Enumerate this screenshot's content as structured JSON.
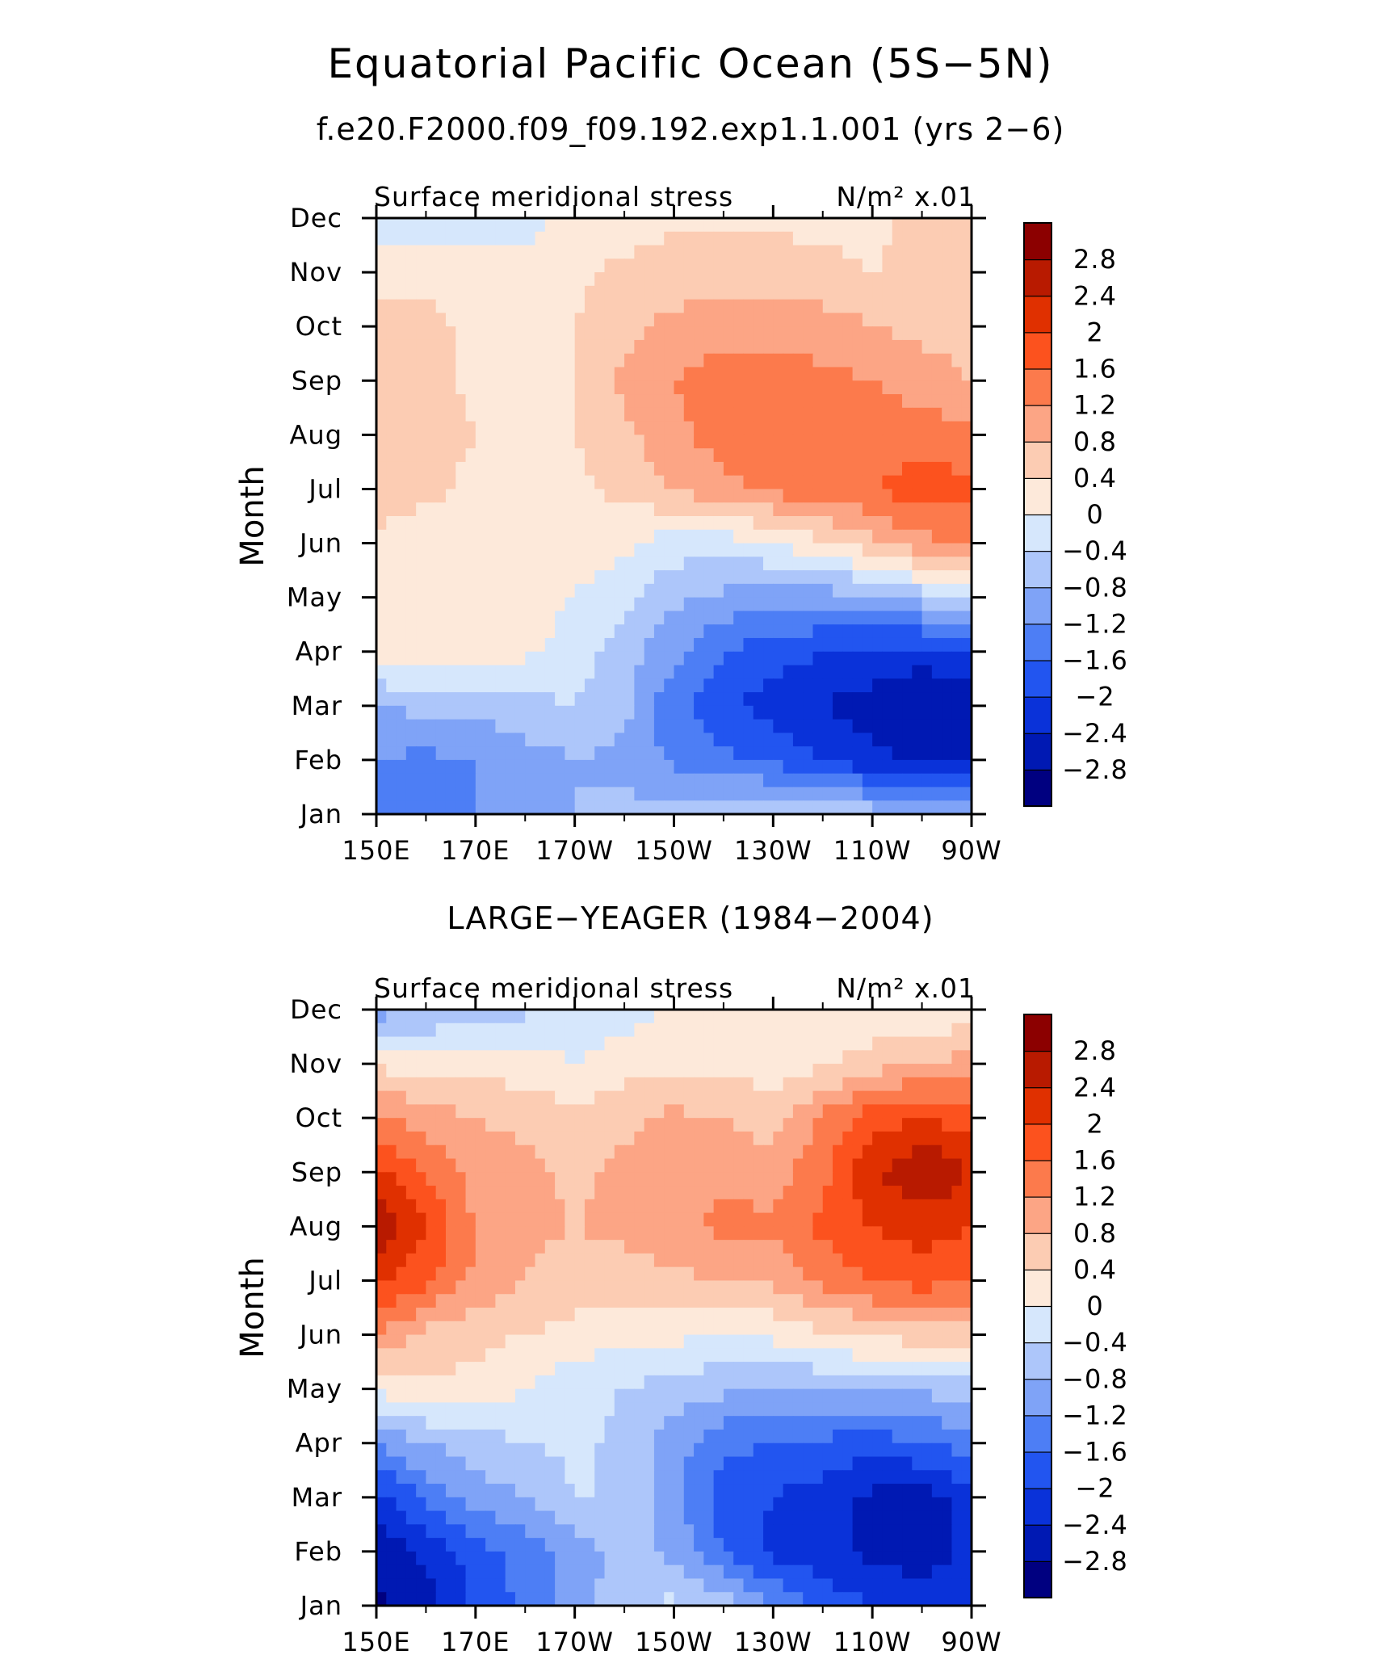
{
  "title": "Equatorial Pacific Ocean (5S−5N)",
  "chart_data": [
    {
      "type": "heatmap",
      "title": "f.e20.F2000.f09_f09.192.exp1.1.001 (yrs 2−6)",
      "left_label": "Surface meridional stress",
      "units_label": "N/m² x.01",
      "xlabel": "",
      "ylabel": "Month",
      "x_ticks": [
        "150E",
        "170E",
        "170W",
        "150W",
        "130W",
        "110W",
        "90W"
      ],
      "x_tick_lons": [
        150,
        170,
        190,
        210,
        230,
        250,
        270
      ],
      "xlim": [
        150,
        270
      ],
      "y_ticks": [
        "Jan",
        "Feb",
        "Mar",
        "Apr",
        "May",
        "Jun",
        "Jul",
        "Aug",
        "Sep",
        "Oct",
        "Nov",
        "Dec"
      ],
      "ylim": [
        1,
        12
      ],
      "levels": [
        -2.8,
        -2.4,
        -2,
        -1.6,
        -1.2,
        -0.8,
        -0.4,
        0,
        0.4,
        0.8,
        1.2,
        1.6,
        2,
        2.4,
        2.8
      ],
      "level_labels": [
        "2.8",
        "2.4",
        "2",
        "1.6",
        "1.2",
        "0.8",
        "0.4",
        "0",
        "−0.4",
        "−0.8",
        "−1.2",
        "−1.6",
        "−2",
        "−2.4",
        "−2.8"
      ],
      "colors": [
        "#000080",
        "#0019b3",
        "#0a32d9",
        "#2255f0",
        "#4d7ef5",
        "#7fa3f7",
        "#adc6fa",
        "#d6e7fc",
        "#fde9da",
        "#fcccb3",
        "#fca585",
        "#fc7a4c",
        "#fc521e",
        "#e03000",
        "#b81a00",
        "#8c0000"
      ],
      "grid": {
        "lons": [
          150,
          160,
          170,
          180,
          190,
          200,
          210,
          220,
          230,
          240,
          250,
          260,
          270
        ],
        "months": [
          1,
          2,
          3,
          4,
          5,
          6,
          7,
          8,
          9,
          10,
          11,
          12
        ],
        "values": [
          [
            -1.3,
            -1.3,
            -1.2,
            -1.0,
            -0.8,
            -0.7,
            -0.6,
            -0.5,
            -0.4,
            -0.5,
            -0.6,
            -0.7,
            -0.8
          ],
          [
            -1.2,
            -1.3,
            -1.2,
            -1.0,
            -0.8,
            -0.9,
            -1.3,
            -1.5,
            -1.7,
            -2.0,
            -2.3,
            -2.5,
            -2.5
          ],
          [
            -0.8,
            -0.7,
            -0.7,
            -0.5,
            -0.4,
            -0.7,
            -1.5,
            -1.9,
            -2.2,
            -2.4,
            -2.6,
            -2.8,
            -2.7
          ],
          [
            0.2,
            0.4,
            0.2,
            0.1,
            -0.2,
            -0.6,
            -1.1,
            -1.6,
            -1.8,
            -2.0,
            -2.1,
            -2.2,
            -2.1
          ],
          [
            0.2,
            0.2,
            0.2,
            0.2,
            0.0,
            -0.3,
            -0.7,
            -0.9,
            -1.0,
            -1.0,
            -0.9,
            -0.6,
            -0.4
          ],
          [
            0.4,
            0.2,
            0.2,
            0.2,
            0.2,
            0.1,
            -0.2,
            -0.2,
            0.0,
            0.3,
            0.7,
            1.1,
            1.2
          ],
          [
            0.5,
            0.5,
            0.3,
            0.2,
            0.3,
            0.5,
            0.8,
            1.1,
            1.3,
            1.5,
            1.6,
            1.8,
            1.7
          ],
          [
            0.5,
            0.6,
            0.4,
            0.3,
            0.4,
            0.7,
            1.1,
            1.4,
            1.5,
            1.5,
            1.4,
            1.4,
            1.3
          ],
          [
            0.5,
            0.6,
            0.3,
            0.3,
            0.4,
            0.9,
            1.2,
            1.4,
            1.4,
            1.3,
            1.2,
            1.0,
            0.8
          ],
          [
            0.6,
            0.5,
            0.3,
            0.3,
            0.4,
            0.7,
            0.9,
            1.0,
            1.0,
            1.0,
            0.8,
            0.7,
            0.6
          ],
          [
            0.2,
            0.3,
            0.2,
            0.1,
            0.3,
            0.5,
            0.6,
            0.6,
            0.6,
            0.5,
            0.4,
            0.5,
            0.6
          ],
          [
            -0.2,
            -0.3,
            -0.2,
            -0.1,
            0.1,
            0.2,
            0.3,
            0.3,
            0.3,
            0.3,
            0.3,
            0.5,
            0.5
          ]
        ]
      }
    },
    {
      "type": "heatmap",
      "title": "LARGE−YEAGER (1984−2004)",
      "left_label": "Surface meridional stress",
      "units_label": "N/m² x.01",
      "xlabel": "",
      "ylabel": "Month",
      "x_ticks": [
        "150E",
        "170E",
        "170W",
        "150W",
        "130W",
        "110W",
        "90W"
      ],
      "x_tick_lons": [
        150,
        170,
        190,
        210,
        230,
        250,
        270
      ],
      "xlim": [
        150,
        270
      ],
      "y_ticks": [
        "Jan",
        "Feb",
        "Mar",
        "Apr",
        "May",
        "Jun",
        "Jul",
        "Aug",
        "Sep",
        "Oct",
        "Nov",
        "Dec"
      ],
      "ylim": [
        1,
        12
      ],
      "levels": [
        -2.8,
        -2.4,
        -2,
        -1.6,
        -1.2,
        -0.8,
        -0.4,
        0,
        0.4,
        0.8,
        1.2,
        1.6,
        2,
        2.4,
        2.8
      ],
      "level_labels": [
        "2.8",
        "2.4",
        "2",
        "1.6",
        "1.2",
        "0.8",
        "0.4",
        "0",
        "−0.4",
        "−0.8",
        "−1.2",
        "−1.6",
        "−2",
        "−2.4",
        "−2.8"
      ],
      "colors": [
        "#000080",
        "#0019b3",
        "#0a32d9",
        "#2255f0",
        "#4d7ef5",
        "#7fa3f7",
        "#adc6fa",
        "#d6e7fc",
        "#fde9da",
        "#fcccb3",
        "#fca585",
        "#fc7a4c",
        "#fc521e",
        "#e03000",
        "#b81a00",
        "#8c0000"
      ],
      "grid": {
        "lons": [
          150,
          160,
          170,
          180,
          190,
          200,
          210,
          220,
          230,
          240,
          250,
          260,
          270
        ],
        "months": [
          1,
          2,
          3,
          4,
          5,
          6,
          7,
          8,
          9,
          10,
          11,
          12
        ],
        "values": [
          [
            -2.9,
            -2.6,
            -1.9,
            -1.5,
            -1.0,
            -0.5,
            -0.3,
            -0.6,
            -1.2,
            -1.7,
            -2.0,
            -2.2,
            -2.0
          ],
          [
            -2.7,
            -2.3,
            -1.8,
            -1.4,
            -1.0,
            -0.7,
            -0.9,
            -1.6,
            -2.1,
            -2.3,
            -2.5,
            -2.6,
            -2.3
          ],
          [
            -2.2,
            -1.5,
            -1.0,
            -0.8,
            -0.4,
            -0.4,
            -1.1,
            -1.8,
            -2.0,
            -2.2,
            -2.5,
            -2.6,
            -2.2
          ],
          [
            -1.1,
            -0.8,
            -0.6,
            -0.4,
            -0.3,
            -0.5,
            -1.0,
            -1.5,
            -1.6,
            -1.7,
            -1.8,
            -1.6,
            -1.4
          ],
          [
            0.1,
            0.3,
            0.3,
            0.0,
            -0.3,
            -0.4,
            -0.6,
            -0.7,
            -0.8,
            -0.8,
            -0.7,
            -0.7,
            -0.6
          ],
          [
            1.2,
            0.7,
            0.5,
            0.4,
            0.3,
            0.1,
            0.1,
            0.0,
            0.1,
            0.3,
            0.5,
            0.6,
            0.6
          ],
          [
            2.1,
            1.7,
            1.1,
            0.8,
            0.6,
            0.6,
            0.7,
            0.8,
            0.9,
            1.3,
            1.6,
            1.8,
            1.6
          ],
          [
            2.8,
            2.0,
            1.2,
            0.9,
            0.8,
            0.9,
            1.1,
            1.3,
            1.3,
            1.7,
            2.0,
            2.2,
            2.0
          ],
          [
            2.1,
            1.6,
            1.0,
            0.9,
            0.7,
            0.9,
            1.1,
            1.1,
            1.0,
            1.5,
            2.3,
            2.8,
            2.4
          ],
          [
            1.3,
            1.0,
            0.8,
            0.7,
            0.5,
            0.7,
            0.9,
            0.8,
            0.6,
            1.3,
            1.8,
            2.0,
            1.8
          ],
          [
            0.3,
            0.2,
            0.2,
            0.2,
            0.0,
            0.2,
            0.3,
            0.3,
            0.2,
            0.3,
            0.6,
            0.9,
            0.9
          ],
          [
            -1.0,
            -0.8,
            -0.6,
            -0.5,
            -0.3,
            -0.2,
            0.1,
            0.1,
            0.1,
            0.1,
            0.1,
            0.0,
            0.2
          ]
        ]
      }
    }
  ]
}
